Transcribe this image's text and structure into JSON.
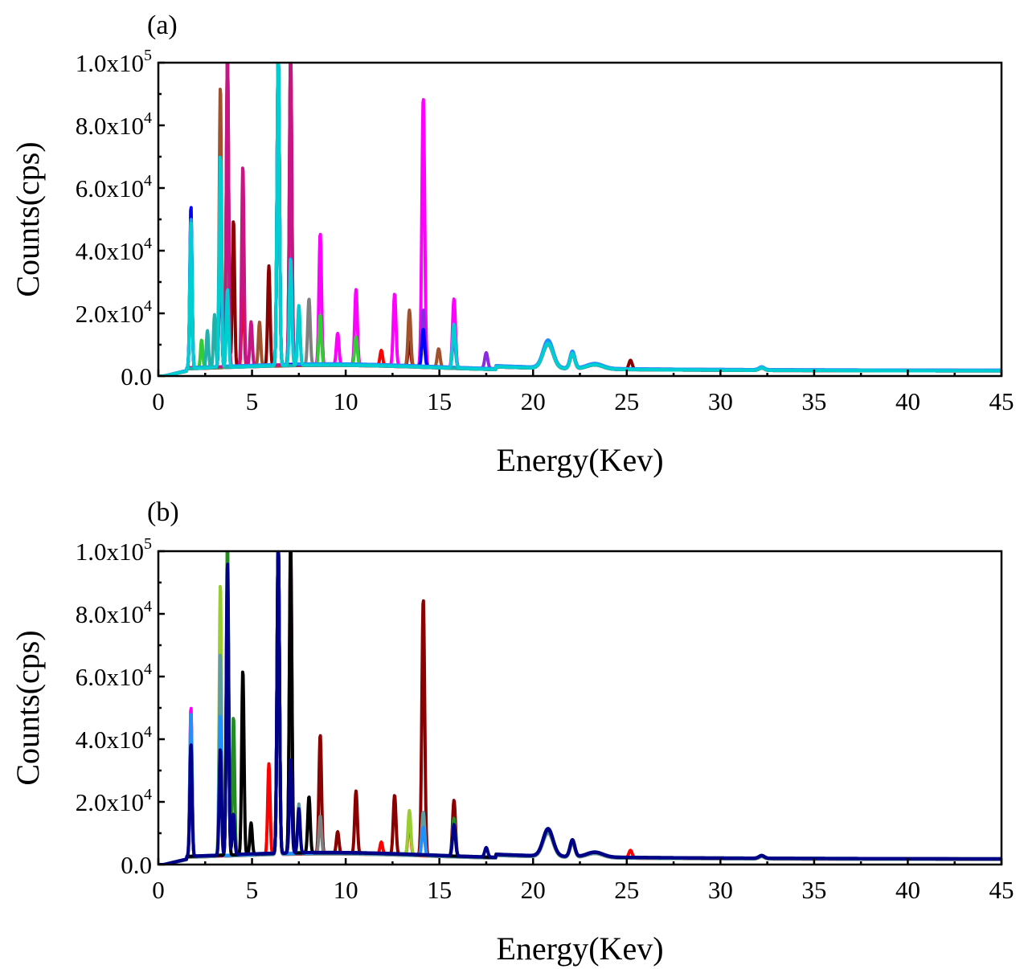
{
  "colors": {
    "a": [
      "#8B0000",
      "#A0522D",
      "#FF00FF",
      "#808080",
      "#8A2BE2",
      "#FF0000",
      "#32CD32",
      "#0000FF",
      "#C71585",
      "#1E90FF",
      "#20B2AA",
      "#00CED1"
    ],
    "b": [
      "#FF0000",
      "#8B0000",
      "#FF00FF",
      "#9ACD32",
      "#228B22",
      "#5F9EA0",
      "#808080",
      "#1E90FF",
      "#000000",
      "#00008B"
    ]
  },
  "chart_data": [
    {
      "type": "line",
      "panel_label": "(a)",
      "xlabel": "Energy(Kev)",
      "ylabel": "Counts(cps)",
      "xlim": [
        0,
        45
      ],
      "ylim": [
        0,
        100000
      ],
      "x_ticks": [
        0,
        5,
        10,
        15,
        20,
        25,
        30,
        35,
        40,
        45
      ],
      "y_ticks": [
        {
          "value": 0,
          "mantissa": "0.0",
          "exp": ""
        },
        {
          "value": 20000,
          "mantissa": "2.0x10",
          "exp": "4"
        },
        {
          "value": 40000,
          "mantissa": "4.0x10",
          "exp": "4"
        },
        {
          "value": 60000,
          "mantissa": "6.0x10",
          "exp": "4"
        },
        {
          "value": 80000,
          "mantissa": "8.0x10",
          "exp": "4"
        },
        {
          "value": 100000,
          "mantissa": "1.0x10",
          "exp": "5"
        }
      ],
      "grid": false,
      "series": [
        {
          "peaks": [
            [
              1.74,
              45000
            ],
            [
              3.69,
              100000
            ],
            [
              4.01,
              47000
            ],
            [
              5.9,
              32000
            ],
            [
              7.06,
              100000
            ],
            [
              13.4,
              8000
            ],
            [
              25.2,
              3000
            ]
          ]
        },
        {
          "peaks": [
            [
              1.74,
              46000
            ],
            [
              3.31,
              90000
            ],
            [
              3.69,
              100000
            ],
            [
              5.4,
              14000
            ],
            [
              13.4,
              18000
            ],
            [
              14.96,
              6000
            ]
          ]
        },
        {
          "peaks": [
            [
              1.74,
              47000
            ],
            [
              6.4,
              100000
            ],
            [
              8.64,
              42000
            ],
            [
              9.57,
              10000
            ],
            [
              10.55,
              24000
            ],
            [
              12.61,
              23000
            ],
            [
              14.14,
              86000
            ],
            [
              15.78,
              22000
            ]
          ]
        },
        {
          "peaks": [
            [
              3.31,
              60000
            ],
            [
              6.4,
              100000
            ],
            [
              8.04,
              21000
            ],
            [
              15.78,
              12000
            ]
          ]
        },
        {
          "peaks": [
            [
              3.31,
              55000
            ],
            [
              6.4,
              100000
            ],
            [
              14.14,
              18000
            ],
            [
              15.78,
              10000
            ],
            [
              17.5,
              5000
            ]
          ]
        },
        {
          "peaks": [
            [
              3.31,
              50000
            ],
            [
              4.51,
              30000
            ],
            [
              6.4,
              100000
            ],
            [
              11.9,
              5000
            ]
          ]
        },
        {
          "peaks": [
            [
              2.31,
              9000
            ],
            [
              3.69,
              30000
            ],
            [
              6.4,
              100000
            ],
            [
              8.64,
              16000
            ],
            [
              10.55,
              9000
            ]
          ]
        },
        {
          "peaks": [
            [
              1.74,
              52000
            ],
            [
              3.31,
              50000
            ],
            [
              6.4,
              100000
            ],
            [
              14.14,
              12000
            ]
          ]
        },
        {
          "peaks": [
            [
              3.69,
              100000
            ],
            [
              4.51,
              64000
            ],
            [
              4.95,
              14000
            ],
            [
              7.06,
              100000
            ]
          ]
        },
        {
          "peaks": [
            [
              1.74,
              48000
            ],
            [
              3.31,
              66000
            ],
            [
              6.4,
              100000
            ],
            [
              7.06,
              34000
            ]
          ]
        },
        {
          "peaks": [
            [
              2.62,
              12000
            ],
            [
              3.0,
              17000
            ],
            [
              3.31,
              62000
            ],
            [
              6.4,
              100000
            ],
            [
              7.5,
              18000
            ]
          ]
        },
        {
          "peaks": [
            [
              1.74,
              47000
            ],
            [
              3.31,
              68000
            ],
            [
              3.69,
              25000
            ],
            [
              6.4,
              100000
            ],
            [
              7.06,
              34000
            ],
            [
              7.5,
              19000
            ],
            [
              15.78,
              14000
            ]
          ]
        }
      ]
    },
    {
      "type": "line",
      "panel_label": "(b)",
      "xlabel": "Energy(Kev)",
      "ylabel": "Counts(cps)",
      "xlim": [
        0,
        45
      ],
      "ylim": [
        0,
        100000
      ],
      "x_ticks": [
        0,
        5,
        10,
        15,
        20,
        25,
        30,
        35,
        40,
        45
      ],
      "y_ticks": [
        {
          "value": 0,
          "mantissa": "0.0",
          "exp": ""
        },
        {
          "value": 20000,
          "mantissa": "2.0x10",
          "exp": "4"
        },
        {
          "value": 40000,
          "mantissa": "4.0x10",
          "exp": "4"
        },
        {
          "value": 60000,
          "mantissa": "6.0x10",
          "exp": "4"
        },
        {
          "value": 80000,
          "mantissa": "8.0x10",
          "exp": "4"
        },
        {
          "value": 100000,
          "mantissa": "1.0x10",
          "exp": "5"
        }
      ],
      "grid": false,
      "series": [
        {
          "peaks": [
            [
              1.74,
              45000
            ],
            [
              3.31,
              52000
            ],
            [
              5.9,
              29000
            ],
            [
              6.4,
              100000
            ],
            [
              11.9,
              4000
            ],
            [
              13.4,
              12000
            ],
            [
              25.2,
              2500
            ]
          ]
        },
        {
          "peaks": [
            [
              1.74,
              40000
            ],
            [
              6.4,
              100000
            ],
            [
              8.64,
              38000
            ],
            [
              9.57,
              7000
            ],
            [
              10.55,
              20000
            ],
            [
              12.61,
              19000
            ],
            [
              14.14,
              82000
            ],
            [
              15.78,
              18000
            ]
          ]
        },
        {
          "peaks": [
            [
              1.74,
              48000
            ],
            [
              6.4,
              100000
            ],
            [
              7.06,
              97000
            ],
            [
              14.14,
              10000
            ]
          ]
        },
        {
          "peaks": [
            [
              1.74,
              44000
            ],
            [
              3.31,
              87000
            ],
            [
              3.69,
              100000
            ],
            [
              6.4,
              100000
            ],
            [
              13.4,
              14000
            ]
          ]
        },
        {
          "peaks": [
            [
              3.69,
              100000
            ],
            [
              4.01,
              44000
            ],
            [
              6.4,
              100000
            ],
            [
              7.06,
              89000
            ],
            [
              15.78,
              12000
            ]
          ]
        },
        {
          "peaks": [
            [
              3.31,
              65000
            ],
            [
              6.4,
              100000
            ],
            [
              7.5,
              16000
            ],
            [
              14.14,
              14000
            ]
          ]
        },
        {
          "peaks": [
            [
              3.31,
              40000
            ],
            [
              6.4,
              100000
            ],
            [
              8.64,
              12000
            ],
            [
              15.78,
              10000
            ]
          ]
        },
        {
          "peaks": [
            [
              1.74,
              46000
            ],
            [
              3.31,
              45000
            ],
            [
              6.4,
              100000
            ],
            [
              14.14,
              9000
            ]
          ]
        },
        {
          "peaks": [
            [
              3.69,
              92000
            ],
            [
              4.51,
              59000
            ],
            [
              4.95,
              10000
            ],
            [
              6.4,
              100000
            ],
            [
              7.06,
              100000
            ],
            [
              8.04,
              18000
            ]
          ]
        },
        {
          "peaks": [
            [
              1.74,
              36000
            ],
            [
              3.31,
              34000
            ],
            [
              3.69,
              94000
            ],
            [
              4.01,
              13000
            ],
            [
              6.4,
              100000
            ],
            [
              7.06,
              30000
            ],
            [
              7.5,
              14000
            ],
            [
              15.78,
              10000
            ],
            [
              17.5,
              3000
            ]
          ]
        }
      ]
    }
  ]
}
